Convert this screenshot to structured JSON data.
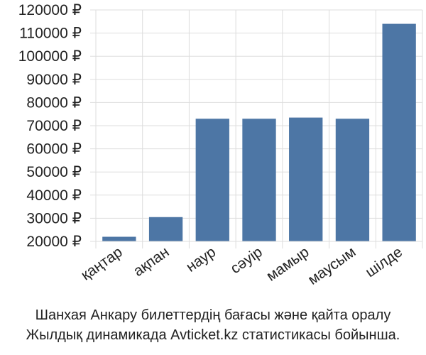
{
  "chart_data": {
    "type": "bar",
    "categories": [
      "қаңтар",
      "ақпан",
      "наур",
      "сәуір",
      "мамыр",
      "маусым",
      "шілде"
    ],
    "values": [
      22000,
      30500,
      73000,
      73000,
      73500,
      73000,
      114000
    ],
    "ylim": [
      20000,
      120000
    ],
    "yticks": [
      20000,
      30000,
      40000,
      50000,
      60000,
      70000,
      80000,
      90000,
      100000,
      110000,
      120000
    ],
    "currency_suffix": " ₽",
    "grid": true,
    "bar_color": "#4d76a5",
    "title": "",
    "xlabel": "",
    "ylabel": ""
  },
  "caption": {
    "line1": "Шанхая Анкару билеттердің бағасы және қайта оралу",
    "line2": "Жылдық динамикада Avticket.kz статистикасы бойынша."
  }
}
